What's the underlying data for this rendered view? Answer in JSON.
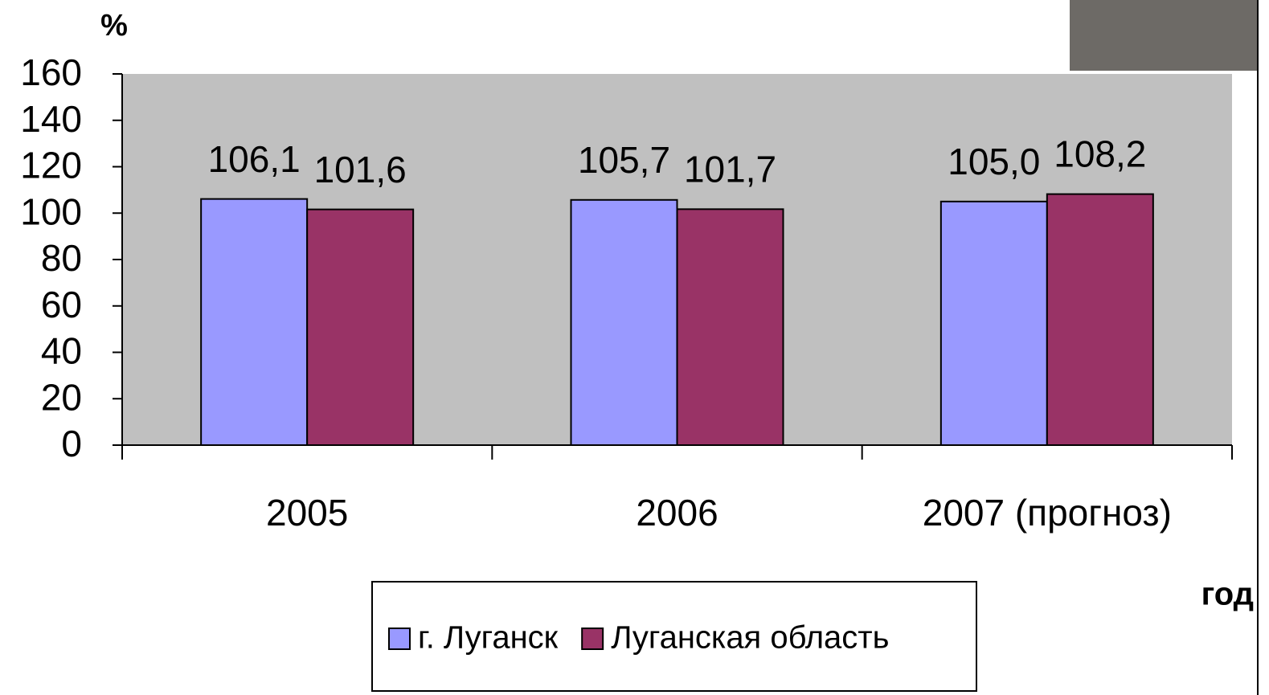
{
  "chart_data": {
    "type": "bar",
    "y_label": "%",
    "x_label": "год",
    "categories": [
      "2005",
      "2006",
      "2007 (прогноз)"
    ],
    "series": [
      {
        "name": "г. Луганск",
        "color": "#9999ff",
        "values": [
          106.1,
          105.7,
          105.0
        ],
        "value_labels": [
          "106,1",
          "105,7",
          "105,0"
        ]
      },
      {
        "name": "Луганская область",
        "color": "#993366",
        "values": [
          101.6,
          101.7,
          108.2
        ],
        "value_labels": [
          "101,6",
          "101,7",
          "108,2"
        ]
      }
    ],
    "ylim": [
      0,
      160
    ],
    "yticks": [
      0,
      20,
      40,
      60,
      80,
      100,
      120,
      140,
      160
    ],
    "plot_background": "#c0c0c0",
    "legend": "bottom"
  }
}
